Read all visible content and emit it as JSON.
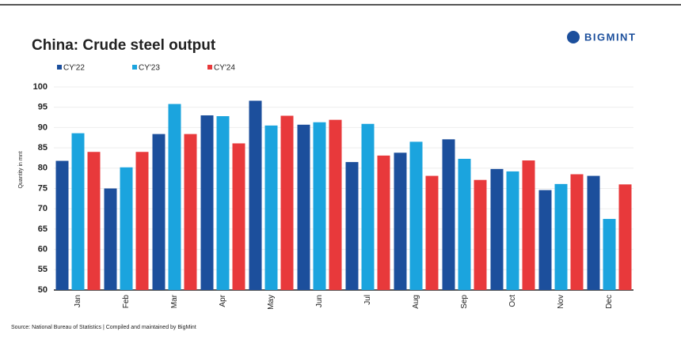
{
  "chart_data": {
    "type": "bar",
    "title": "China: Crude steel output",
    "brand": "BIGMINT",
    "y_label": "Quantity in mnt",
    "source": "Source: National Bureau of Statistics | Compiled and maintained by BigMint",
    "categories": [
      "Jan",
      "Feb",
      "Mar",
      "Apr",
      "May",
      "Jun",
      "Jul",
      "Aug",
      "Sep",
      "Oct",
      "Nov",
      "Dec"
    ],
    "series": [
      {
        "name": "CY'22",
        "color": "#1c4f9c",
        "values": [
          81.8,
          75,
          88.4,
          93,
          96.6,
          90.7,
          81.5,
          83.8,
          87.1,
          79.8,
          74.6,
          78.1
        ]
      },
      {
        "name": "CY'23",
        "color": "#1ba4de",
        "values": [
          88.6,
          80.2,
          95.8,
          92.8,
          90.5,
          91.3,
          90.9,
          86.5,
          82.3,
          79.2,
          76.1,
          67.5
        ]
      },
      {
        "name": "CY'24",
        "color": "#e8393b",
        "values": [
          84,
          84,
          88.4,
          86.1,
          92.9,
          91.9,
          83.1,
          78.1,
          77.1,
          81.9,
          78.5,
          76
        ]
      }
    ],
    "ylim": [
      50,
      100
    ],
    "yticks": [
      50,
      55,
      60,
      65,
      70,
      75,
      80,
      85,
      90,
      95,
      100
    ],
    "grid": true
  }
}
